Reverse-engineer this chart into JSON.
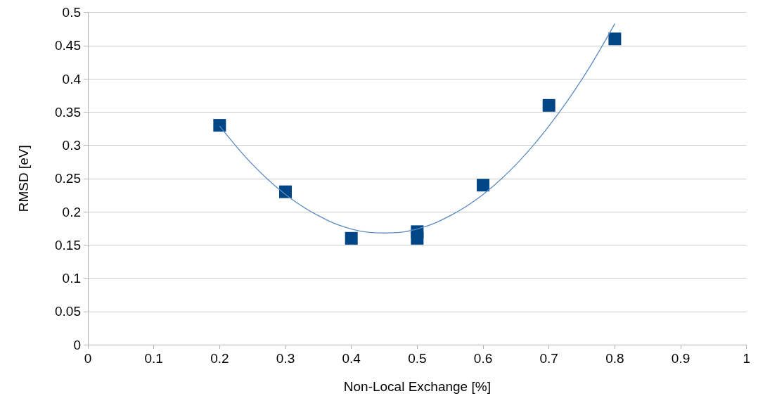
{
  "chart_data": {
    "type": "scatter",
    "xlabel": "Non-Local Exchange [%]",
    "ylabel": "RMSD [eV]",
    "xlim": [
      0,
      1
    ],
    "xticks": [
      0,
      0.1,
      0.2,
      0.3,
      0.4,
      0.5,
      0.6,
      0.7,
      0.8,
      0.9,
      1
    ],
    "ylim": [
      0,
      0.5
    ],
    "yticks": [
      0,
      0.05,
      0.1,
      0.15,
      0.2,
      0.25,
      0.3,
      0.35,
      0.4,
      0.45,
      0.5
    ],
    "grid": "y",
    "marker": "square",
    "series": [
      {
        "color": "#004586",
        "x": [
          0.2,
          0.3,
          0.4,
          0.5,
          0.5,
          0.6,
          0.7,
          0.8
        ],
        "values": [
          0.33,
          0.23,
          0.16,
          0.16,
          0.17,
          0.24,
          0.36,
          0.46
        ]
      },
      {
        "type": "line",
        "color": "#5b8bc0",
        "marker": "none",
        "x": [
          0.2,
          0.25,
          0.3,
          0.35,
          0.4,
          0.45,
          0.5,
          0.55,
          0.6,
          0.65,
          0.7,
          0.75,
          0.8
        ],
        "values": [
          0.329,
          0.271,
          0.226,
          0.194,
          0.174,
          0.168,
          0.174,
          0.194,
          0.226,
          0.271,
          0.329,
          0.399,
          0.483
        ]
      }
    ]
  }
}
